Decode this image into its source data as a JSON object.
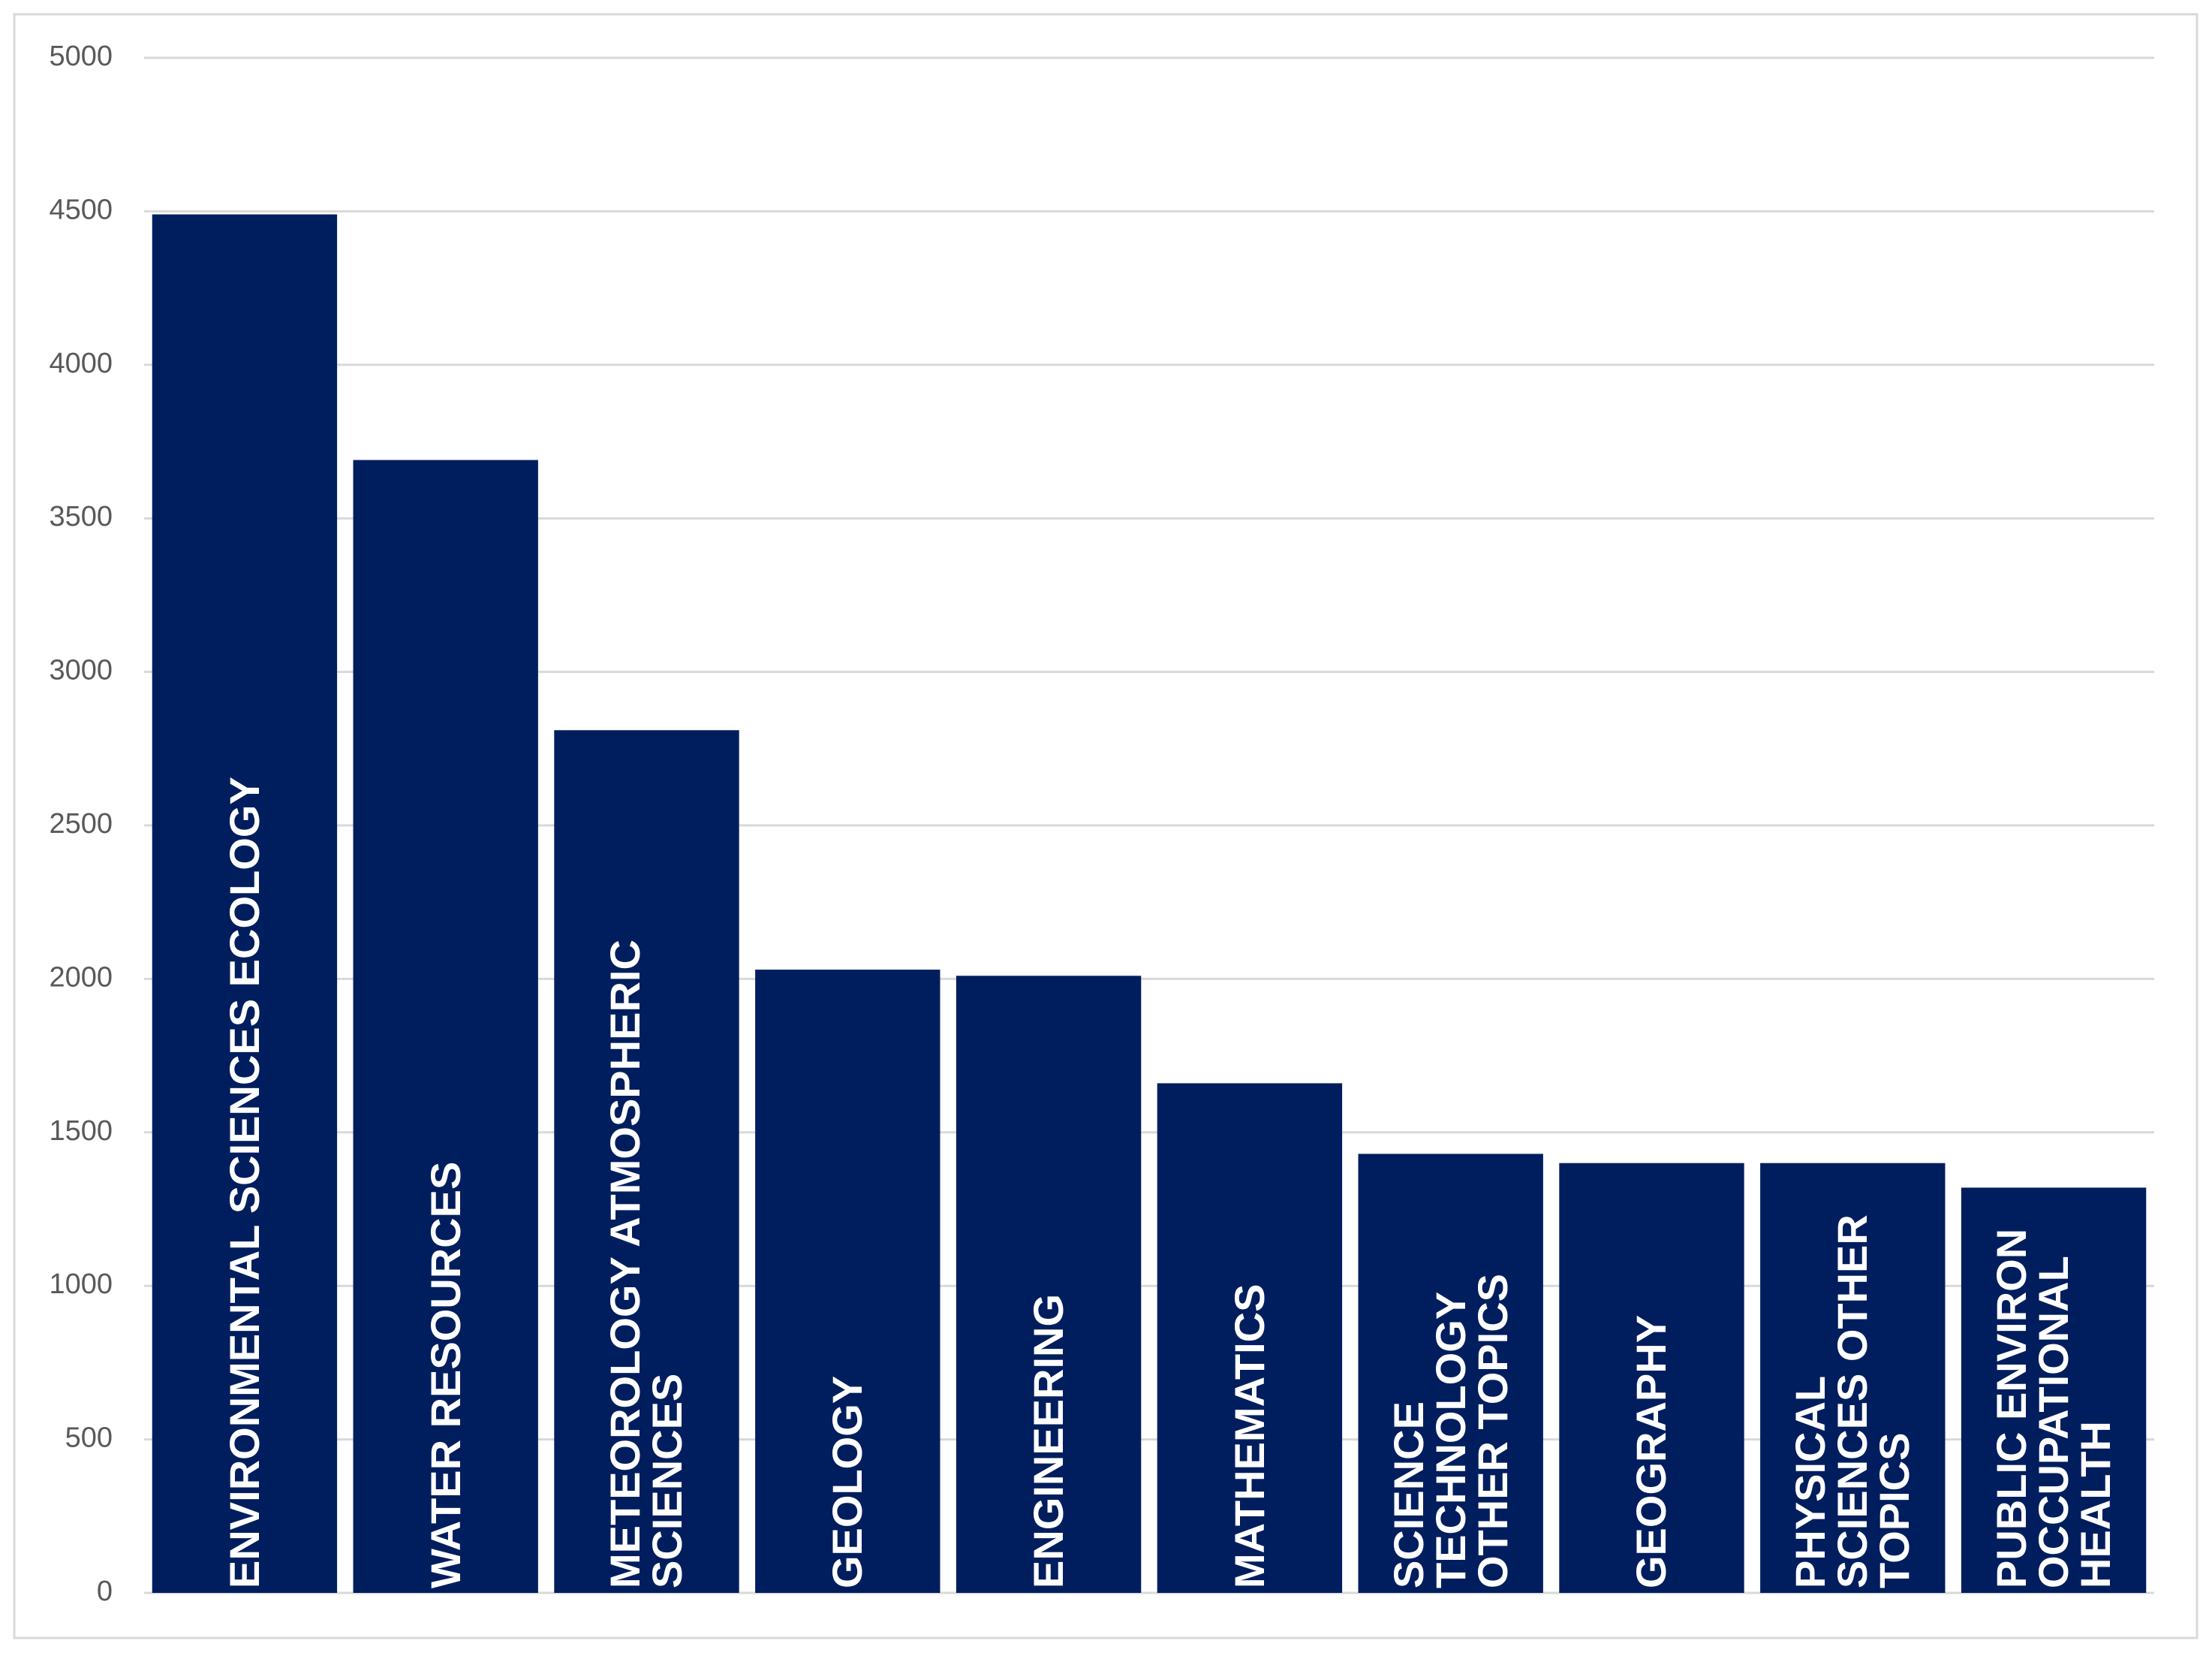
{
  "chart_data": {
    "type": "bar",
    "categories": [
      "ENVIRONMENTAL SCIENCES ECOLOGY",
      "WATER RESOURCES",
      "METEOROLOGY ATMOSPHERIC SCIENCES",
      "GEOLOGY",
      "ENGINEERING",
      "MATHEMATICS",
      "SCIENCE TECHNOLOGY OTHER TOPICS",
      "GEOGRAPHY",
      "PHYSICAL SCIENCES OTHER TOPICS",
      "PUBLIC ENVIRON OCCUPATIONAL HEALTH"
    ],
    "values": [
      4490,
      3690,
      2810,
      2030,
      2010,
      1660,
      1430,
      1400,
      1400,
      1320
    ],
    "color": "#001e5e",
    "ylim": [
      0,
      5000
    ],
    "yticks": [
      0,
      500,
      1000,
      1500,
      2000,
      2500,
      3000,
      3500,
      4000,
      4500,
      5000
    ],
    "grid": true
  }
}
